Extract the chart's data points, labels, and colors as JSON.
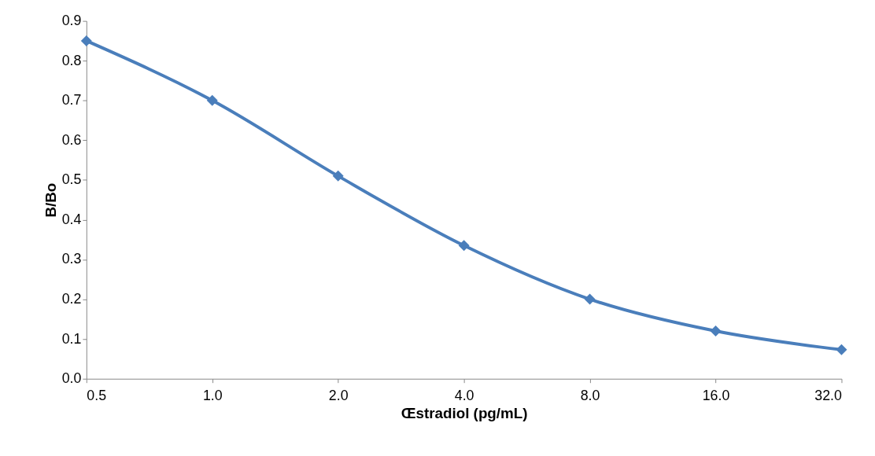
{
  "chart_data": {
    "type": "line",
    "xlabel": "Œstradiol (pg/mL)",
    "ylabel": "B/Bo",
    "categories": [
      "0.5",
      "1.0",
      "2.0",
      "4.0",
      "8.0",
      "16.0",
      "32.0"
    ],
    "series": [
      {
        "color": "#4a7ebb",
        "values": [
          0.85,
          0.7,
          0.51,
          0.335,
          0.2,
          0.12,
          0.073
        ]
      }
    ],
    "ylim": [
      0,
      0.9
    ],
    "yticks": [
      {
        "value": 0,
        "label": "0.0"
      },
      0.1,
      0.2,
      0.3,
      0.4,
      0.5,
      0.6,
      0.7,
      0.8,
      0.9
    ],
    "grid": false,
    "legend": false,
    "marker": "diamond",
    "line_style": "solid"
  }
}
